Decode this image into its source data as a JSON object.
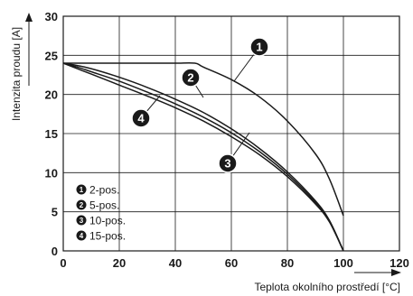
{
  "chart_data": {
    "type": "line",
    "xlabel": "Teplota okolního prostředí [°C]",
    "ylabel": "Intenzita proudu [A]",
    "xlim": [
      0,
      120
    ],
    "ylim": [
      0,
      30
    ],
    "x_ticks": [
      "0",
      "20",
      "40",
      "60",
      "80",
      "100",
      "120"
    ],
    "y_ticks": [
      "0",
      "5",
      "10",
      "15",
      "20",
      "25",
      "30"
    ],
    "grid": true,
    "legend_position": "bottom-left",
    "series": [
      {
        "marker": "1",
        "name": "2-pos.",
        "x": [
          0,
          10,
          20,
          30,
          40,
          47,
          50,
          60,
          70,
          80,
          90,
          95,
          100
        ],
        "y": [
          24,
          24,
          24,
          24,
          24,
          24,
          23.5,
          21.9,
          19.7,
          16.6,
          12.4,
          9.2,
          4.5
        ]
      },
      {
        "marker": "2",
        "name": "5-pos.",
        "x": [
          0,
          5,
          10,
          20,
          30,
          40,
          50,
          60,
          70,
          80,
          90,
          95,
          100
        ],
        "y": [
          24,
          23.7,
          23.3,
          22.2,
          20.9,
          19.4,
          17.7,
          15.6,
          13.1,
          10.1,
          6.4,
          3.9,
          0
        ]
      },
      {
        "marker": "3",
        "name": "10-pos.",
        "x": [
          0,
          5,
          10,
          20,
          30,
          40,
          50,
          60,
          70,
          80,
          90,
          95,
          100
        ],
        "y": [
          24,
          23.5,
          22.9,
          21.7,
          20.3,
          18.8,
          17.1,
          15.1,
          12.7,
          9.8,
          6.2,
          3.8,
          0
        ]
      },
      {
        "marker": "4",
        "name": "15-pos.",
        "x": [
          0,
          5,
          10,
          20,
          30,
          40,
          50,
          60,
          70,
          80,
          90,
          95,
          100
        ],
        "y": [
          24,
          23.3,
          22.6,
          21.2,
          19.8,
          18.3,
          16.6,
          14.6,
          12.3,
          9.5,
          6.0,
          3.7,
          0
        ]
      }
    ]
  }
}
